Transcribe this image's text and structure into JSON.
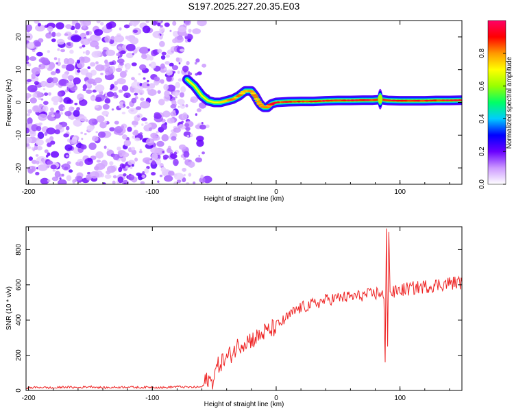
{
  "figure_title": "S197.2025.227.20.35.E03",
  "chart_data": [
    {
      "type": "heatmap",
      "xlabel": "Height of straight line (km)",
      "ylabel": "Frequency (Hz)",
      "xlim": [
        -202,
        150
      ],
      "ylim": [
        -25,
        25
      ],
      "xticks": [
        -200,
        -100,
        0,
        100
      ],
      "yticks": [
        -20,
        -10,
        0,
        10,
        20
      ],
      "colorbar": {
        "label": "Normalized spectral amplitude",
        "range": [
          0,
          1
        ],
        "ticks": [
          0.0,
          0.2,
          0.4,
          0.6,
          0.8
        ],
        "stops": [
          "#ffffff",
          "#cc99ff",
          "#6a00ff",
          "#0000ff",
          "#00ccff",
          "#00ff66",
          "#99ff00",
          "#ffff00",
          "#ff9900",
          "#ff0000",
          "#ff0066"
        ]
      },
      "noise_region_km": [
        -202,
        -55
      ],
      "signal_track": {
        "x": [
          -72,
          -66,
          -60,
          -55,
          -50,
          -45,
          -40,
          -35,
          -30,
          -25,
          -20,
          -17,
          -14,
          -12,
          -10,
          -7,
          -4,
          0,
          10,
          20,
          30,
          40,
          50,
          60,
          70,
          78,
          82,
          84,
          86,
          90,
          100,
          110,
          120,
          130,
          140,
          150
        ],
        "y": [
          7,
          5,
          2,
          0.5,
          0,
          0,
          0.5,
          1,
          2,
          3.5,
          3.5,
          2,
          0,
          -1,
          -1.5,
          -1.5,
          -0.5,
          0,
          0.2,
          0.3,
          0.3,
          0.5,
          0.6,
          0.6,
          0.7,
          0.7,
          0.8,
          1,
          0.8,
          0.6,
          0.5,
          0.5,
          0.5,
          0.6,
          0.6,
          0.7
        ]
      }
    },
    {
      "type": "line",
      "xlabel": "Height of straight line (km)",
      "ylabel": "SNR (10 * v/v)",
      "xlim": [
        -202,
        150
      ],
      "ylim": [
        0,
        930
      ],
      "xticks": [
        -200,
        -100,
        0,
        100
      ],
      "yticks": [
        0,
        200,
        400,
        600,
        800
      ],
      "series": [
        {
          "name": "SNR",
          "color": "#ee2222",
          "x": [
            -202,
            -190,
            -180,
            -170,
            -160,
            -150,
            -140,
            -130,
            -120,
            -110,
            -100,
            -90,
            -80,
            -70,
            -60,
            -58,
            -55,
            -52,
            -50,
            -45,
            -40,
            -35,
            -30,
            -25,
            -20,
            -15,
            -10,
            -5,
            0,
            5,
            10,
            15,
            20,
            25,
            30,
            35,
            40,
            45,
            50,
            55,
            60,
            65,
            70,
            75,
            80,
            85,
            87,
            88,
            89,
            90,
            91,
            92,
            94,
            96,
            100,
            105,
            110,
            115,
            120,
            125,
            130,
            135,
            140,
            145,
            150
          ],
          "y": [
            15,
            18,
            14,
            20,
            16,
            22,
            15,
            18,
            20,
            17,
            19,
            16,
            22,
            18,
            20,
            35,
            70,
            40,
            100,
            160,
            180,
            220,
            260,
            280,
            290,
            300,
            330,
            340,
            365,
            390,
            420,
            450,
            470,
            480,
            490,
            500,
            515,
            520,
            525,
            530,
            532,
            535,
            540,
            545,
            550,
            560,
            520,
            160,
            920,
            250,
            900,
            560,
            550,
            560,
            570,
            575,
            580,
            585,
            590,
            595,
            600,
            605,
            610,
            612,
            615
          ]
        }
      ]
    }
  ]
}
